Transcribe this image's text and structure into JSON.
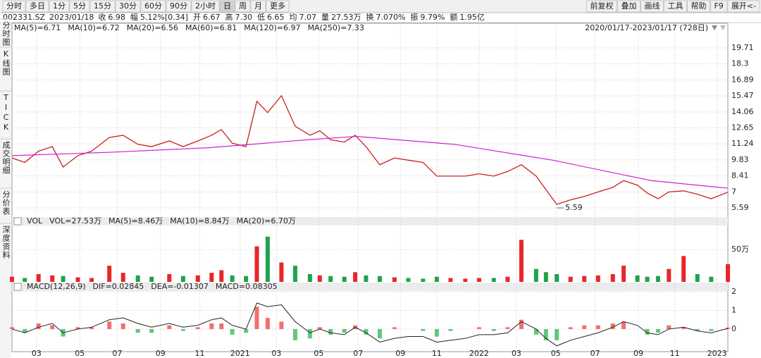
{
  "toolbar": {
    "periods": [
      "分时",
      "多日",
      "1分",
      "5分",
      "15分",
      "30分",
      "60分",
      "90分",
      "2小时",
      "日",
      "周",
      "月",
      "更多"
    ],
    "active_index": 9,
    "tools": [
      "前复权",
      "叠加",
      "画线",
      "工具",
      "帮助",
      "F9",
      "展开<-"
    ]
  },
  "info": {
    "code": "002331.SZ",
    "date": "2023/01/18",
    "fields": [
      {
        "label": "收",
        "value": "6.98",
        "color": "#e0201e"
      },
      {
        "label": "幅",
        "value": "5.12%[0.34]",
        "color": "#e0201e"
      },
      {
        "label": "开",
        "value": "6.67",
        "color": "#e0201e"
      },
      {
        "label": "高",
        "value": "7.30",
        "color": "#e0201e"
      },
      {
        "label": "低",
        "value": "6.65",
        "color": "#e0201e"
      },
      {
        "label": "均",
        "value": "7.07",
        "color": "#e0201e"
      },
      {
        "label": "量",
        "value": "27.53万",
        "color": "#222"
      },
      {
        "label": "换",
        "value": "7.070%",
        "color": "#222"
      },
      {
        "label": "振",
        "value": "9.79%",
        "color": "#222"
      },
      {
        "label": "额",
        "value": "1.95亿",
        "color": "#222"
      }
    ]
  },
  "side_tabs": [
    "分时图",
    "K线图",
    "TICK",
    "成交明细",
    "分价表",
    "深度资料"
  ],
  "chart_data": [
    {
      "type": "line",
      "legend": [
        {
          "text": "MA(5)=6.71",
          "color": "#e0201e"
        },
        {
          "text": "MA(10)=6.72",
          "color": "#1a50d0"
        },
        {
          "text": "MA(20)=6.56",
          "color": "#7a1ae0"
        },
        {
          "text": "MA(60)=6.81",
          "color": "#18b0c8"
        },
        {
          "text": "MA(120)=6.97",
          "color": "#20a040"
        },
        {
          "text": "MA(250)=7.33",
          "color": "#d020d0"
        }
      ],
      "range_label": "2020/01/17-2023/01/17 (728日)",
      "x": [
        0,
        13,
        27,
        41,
        52,
        67,
        81,
        99,
        113,
        128,
        142,
        160,
        174,
        189,
        203,
        213,
        224,
        238,
        249,
        260,
        274,
        288,
        303,
        313,
        324,
        338,
        349,
        360,
        374,
        389,
        403,
        418,
        432,
        446,
        461,
        475,
        490,
        504,
        518,
        533,
        543,
        554,
        568,
        582,
        596,
        611,
        622,
        636,
        646,
        657,
        668,
        683,
        697,
        711,
        728
      ],
      "series": [
        {
          "color": "#c8201e",
          "values": [
            10.0,
            9.6,
            10.6,
            11.0,
            9.2,
            10.2,
            10.6,
            11.8,
            12.0,
            11.2,
            11.0,
            11.5,
            11.0,
            11.5,
            12.0,
            12.5,
            11.3,
            11.0,
            15.0,
            14.0,
            15.5,
            12.8,
            12.0,
            12.4,
            11.6,
            11.4,
            12.0,
            11.0,
            9.4,
            10.0,
            9.8,
            9.6,
            8.4,
            8.4,
            8.4,
            8.6,
            8.4,
            8.8,
            9.4,
            8.4,
            7.2,
            5.9,
            6.3,
            6.6,
            7.0,
            7.4,
            8.0,
            7.6,
            6.9,
            6.4,
            7.0,
            7.1,
            6.8,
            6.4,
            6.98
          ]
        }
      ],
      "ma_line": {
        "color": "#d020d0",
        "x": [
          0,
          100,
          200,
          300,
          350,
          450,
          550,
          650,
          728
        ],
        "values": [
          10.2,
          10.5,
          10.9,
          11.6,
          11.9,
          11.2,
          9.8,
          8.0,
          7.33
        ]
      },
      "low": {
        "x": 554,
        "value": 5.59
      },
      "xlim": [
        0,
        728
      ],
      "ylim": [
        4.97,
        21.76
      ],
      "yticks": [
        19.71,
        18.3,
        16.89,
        15.47,
        14.06,
        12.65,
        11.24,
        9.83,
        8.41,
        7,
        5.59
      ],
      "xticks": [
        {
          "value": 25,
          "label": "03"
        },
        {
          "value": 69,
          "label": "05"
        },
        {
          "value": 107,
          "label": "07"
        },
        {
          "value": 151,
          "label": "09"
        },
        {
          "value": 191,
          "label": "11"
        },
        {
          "value": 232,
          "label": "2021"
        },
        {
          "value": 269,
          "label": "03"
        },
        {
          "value": 312,
          "label": "05"
        },
        {
          "value": 352,
          "label": "07"
        },
        {
          "value": 395,
          "label": "09"
        },
        {
          "value": 432,
          "label": "11"
        },
        {
          "value": 475,
          "label": "2022"
        },
        {
          "value": 513,
          "label": "03"
        },
        {
          "value": 553,
          "label": "05"
        },
        {
          "value": 593,
          "label": "07"
        },
        {
          "value": 637,
          "label": "09"
        },
        {
          "value": 674,
          "label": "11"
        },
        {
          "value": 717,
          "label": "2023"
        }
      ],
      "year_color": "#e08a00",
      "grid": true
    },
    {
      "type": "bar",
      "legend": [
        {
          "text": "VOL",
          "color": "#222"
        },
        {
          "text": "VOL=27.53万",
          "color": "#222"
        },
        {
          "text": "MA(5)=8.46万",
          "color": "#222"
        },
        {
          "text": "MA(10)=8.84万",
          "color": "#1a50d0"
        },
        {
          "text": "MA(20)=6.70万",
          "color": "#7a1ae0"
        }
      ],
      "values": [
        8,
        6,
        12,
        10,
        9,
        7,
        6,
        25,
        14,
        10,
        8,
        12,
        9,
        10,
        14,
        18,
        10,
        9,
        55,
        70,
        30,
        25,
        12,
        10,
        9,
        8,
        15,
        10,
        9,
        7,
        6,
        5,
        8,
        6,
        5,
        6,
        6,
        8,
        65,
        20,
        15,
        12,
        8,
        9,
        10,
        12,
        25,
        10,
        8,
        9,
        20,
        40,
        12,
        8,
        27.53
      ],
      "up_color": "#e8262a",
      "down_color": "#1ea34a",
      "ylim": [
        0,
        85
      ],
      "yticks": [
        {
          "value": 50,
          "label": "50万"
        }
      ]
    },
    {
      "type": "macd",
      "legend": [
        {
          "text": "MACD(12,26,9)",
          "color": "#222"
        },
        {
          "text": "DIF=0.02845",
          "color": "#222"
        },
        {
          "text": "DEA=-0.01307",
          "color": "#1a50d0"
        },
        {
          "text": "MACD=0.08305",
          "color": "#7a1ae0"
        }
      ],
      "values": [
        0.1,
        -0.2,
        0.3,
        0.2,
        -0.4,
        0.1,
        0.1,
        0.4,
        0.3,
        -0.2,
        -0.2,
        0.2,
        -0.1,
        0.1,
        0.3,
        0.3,
        -0.3,
        -0.2,
        1.2,
        0.6,
        0.4,
        -0.6,
        -0.5,
        0.1,
        -0.3,
        -0.2,
        0.2,
        -0.3,
        -0.5,
        0.1,
        0.0,
        -0.1,
        -0.4,
        -0.1,
        0.0,
        0.1,
        -0.1,
        0.1,
        0.5,
        -0.3,
        -0.6,
        -0.6,
        0.1,
        0.2,
        0.2,
        0.3,
        0.4,
        0.0,
        -0.3,
        -0.2,
        0.2,
        0.1,
        -0.1,
        -0.1,
        0.08
      ],
      "dif": [
        0.0,
        -0.2,
        0.1,
        0.3,
        -0.2,
        0.0,
        0.1,
        0.5,
        0.6,
        0.3,
        0.1,
        0.3,
        0.1,
        0.2,
        0.5,
        0.6,
        0.2,
        0.0,
        1.4,
        1.2,
        1.3,
        0.4,
        -0.2,
        0.0,
        -0.2,
        -0.3,
        0.1,
        -0.2,
        -0.7,
        -0.5,
        -0.4,
        -0.4,
        -0.7,
        -0.6,
        -0.5,
        -0.3,
        -0.3,
        -0.2,
        0.4,
        0.0,
        -0.5,
        -0.9,
        -0.6,
        -0.4,
        -0.2,
        0.1,
        0.4,
        0.2,
        -0.2,
        -0.3,
        0.0,
        0.1,
        -0.1,
        -0.2,
        0.03
      ],
      "up_color": "#f07070",
      "down_color": "#60c878",
      "ylim": [
        -1.06,
        2.34
      ],
      "yticks": [
        2,
        1,
        0
      ]
    }
  ]
}
